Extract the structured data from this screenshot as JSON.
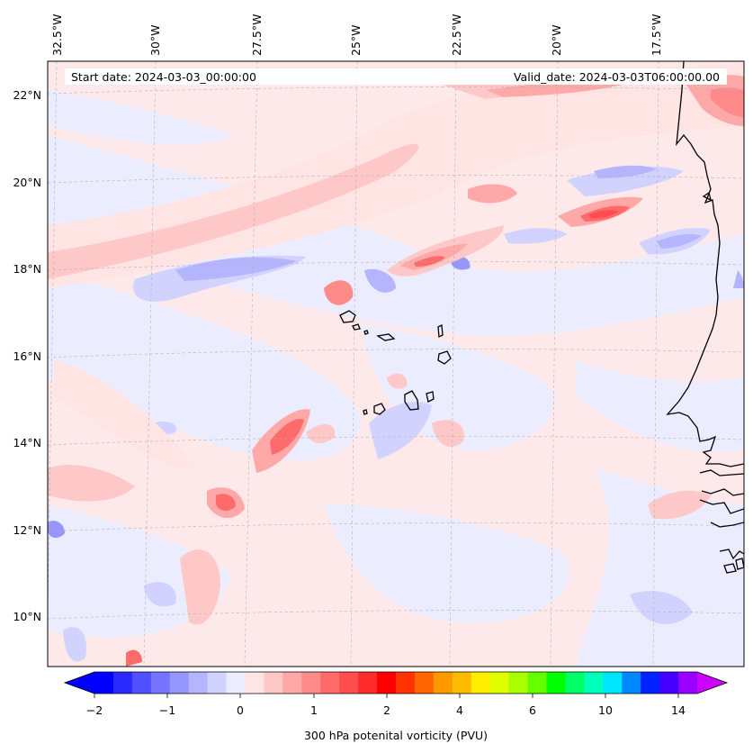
{
  "map": {
    "start_date": "Start date: 2024-03-03_00:00:00",
    "valid_date": "Valid_date: 2024-03-03T06:00:00.00",
    "lon_labels": [
      "32.5°W",
      "30°W",
      "27.5°W",
      "25°W",
      "22.5°W",
      "20°W",
      "17.5°W"
    ],
    "lat_labels": [
      "22°N",
      "20°N",
      "18°N",
      "16°N",
      "14°N",
      "12°N",
      "10°N"
    ],
    "coastline_color": "#000000",
    "gridline_color": "#b0b0b0"
  },
  "colorbar": {
    "label": "300 hPa potenital vorticity (PVU)",
    "tick_labels": [
      "−2",
      "−1",
      "0",
      "1",
      "2",
      "4",
      "6",
      "10",
      "14"
    ],
    "colors": [
      "#0000ff",
      "#2b2bff",
      "#5050ff",
      "#7474ff",
      "#9696ff",
      "#b4b4ff",
      "#d2d2ff",
      "#ececff",
      "#ffe4e4",
      "#ffc8c8",
      "#ffa8a8",
      "#ff8a8a",
      "#ff6a6a",
      "#ff4c4c",
      "#ff2a2a",
      "#ff0000",
      "#ff3300",
      "#ff6600",
      "#ff9900",
      "#ffbb00",
      "#ffee00",
      "#ddff00",
      "#aaff00",
      "#66ff00",
      "#00ff00",
      "#00ff66",
      "#00ffbb",
      "#00e5ff",
      "#0088ff",
      "#0022ff",
      "#4400ff",
      "#9900ff"
    ],
    "under_color": "#0000ff",
    "over_color": "#cc00ff"
  }
}
